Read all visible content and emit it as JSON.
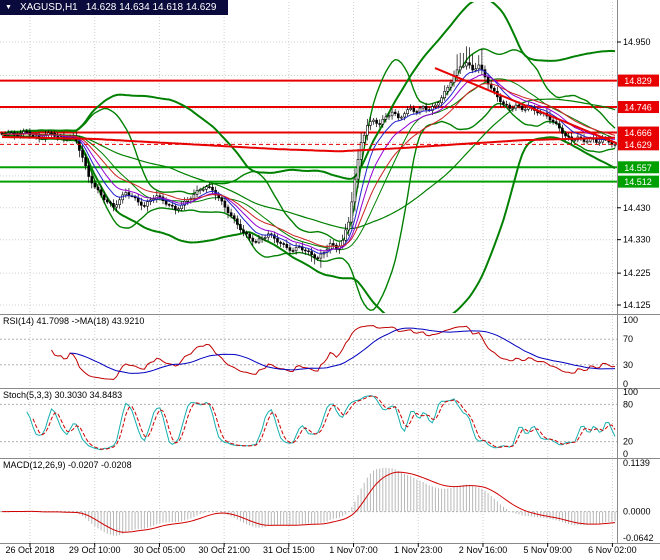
{
  "title_bar": {
    "icon": "▼",
    "symbol": "XAGUSD,H1",
    "ohlc": "14.628 14.634 14.618 14.629"
  },
  "panels": {
    "rsi": {
      "label": "RSI(14) 41.7098 ->MA(18) 43.9210"
    },
    "stoch": {
      "label": "Stoch(5,3,3) 30.3030 34.8483"
    },
    "macd": {
      "label": "MACD(12,26,9) -0.0207 -0.0208"
    }
  },
  "chart_data": {
    "type": "candlestick",
    "symbol": "XAGUSD",
    "timeframe": "H1",
    "ohlc_display": {
      "open": "14.628",
      "high": "14.634",
      "low": "14.618",
      "close": "14.629"
    },
    "time_ticks": [
      "26 Oct 2018",
      "29 Oct 10:00",
      "30 Oct 05:00",
      "30 Oct 21:00",
      "31 Oct 15:00",
      "1 Nov 07:00",
      "1 Nov 23:00",
      "2 Nov 16:00",
      "5 Nov 09:00",
      "6 Nov 02:00"
    ],
    "price_axis": {
      "min": 14.105,
      "max": 15.08,
      "plain_ticks": [
        {
          "label": "14.950",
          "price": 14.95
        },
        {
          "label": "14.430",
          "price": 14.43
        },
        {
          "label": "14.330",
          "price": 14.33
        },
        {
          "label": "14.225",
          "price": 14.225
        },
        {
          "label": "14.125",
          "price": 14.125
        }
      ],
      "grid_ticks": [
        14.95,
        14.845,
        14.74,
        14.635,
        14.53,
        14.43,
        14.33,
        14.225,
        14.125
      ],
      "badges": [
        {
          "label": "14.829",
          "price": 14.829,
          "type": "resistance"
        },
        {
          "label": "14.746",
          "price": 14.746,
          "type": "resistance"
        },
        {
          "label": "14.666",
          "price": 14.666,
          "type": "resistance"
        },
        {
          "label": "14.629",
          "price": 14.629,
          "type": "current"
        },
        {
          "label": "14.557",
          "price": 14.557,
          "type": "support"
        },
        {
          "label": "14.512",
          "price": 14.512,
          "type": "support"
        }
      ]
    },
    "horizontal_lines": {
      "resistance": [
        14.829,
        14.746,
        14.666
      ],
      "support": [
        14.557,
        14.512
      ],
      "current_price": 14.629
    },
    "trendline": {
      "x1": 0.705,
      "price1": 14.868,
      "x2": 1.0,
      "price2": 14.632
    },
    "slow_ma_waypoints": [
      [
        0,
        14.652
      ],
      [
        0.15,
        14.646
      ],
      [
        0.3,
        14.63
      ],
      [
        0.45,
        14.614
      ],
      [
        0.55,
        14.607
      ],
      [
        0.65,
        14.617
      ],
      [
        0.75,
        14.63
      ],
      [
        0.85,
        14.642
      ],
      [
        1,
        14.65
      ]
    ],
    "closes_waypoints": [
      14.66,
      14.665,
      14.658,
      14.663,
      14.668,
      14.655,
      14.648,
      14.658,
      14.664,
      14.652,
      14.645,
      14.655,
      14.64,
      14.588,
      14.528,
      14.495,
      14.47,
      14.448,
      14.432,
      14.455,
      14.478,
      14.466,
      14.448,
      14.435,
      14.455,
      14.468,
      14.452,
      14.438,
      14.424,
      14.438,
      14.455,
      14.472,
      14.488,
      14.496,
      14.485,
      14.462,
      14.432,
      14.405,
      14.378,
      14.352,
      14.335,
      14.322,
      14.335,
      14.348,
      14.334,
      14.318,
      14.305,
      14.295,
      14.308,
      14.295,
      14.283,
      14.272,
      14.29,
      14.318,
      14.3,
      14.328,
      14.385,
      14.52,
      14.635,
      14.688,
      14.705,
      14.692,
      14.715,
      14.73,
      14.712,
      14.725,
      14.742,
      14.73,
      14.748,
      14.735,
      14.752,
      14.775,
      14.808,
      14.845,
      14.872,
      14.885,
      14.862,
      14.878,
      14.84,
      14.805,
      14.778,
      14.755,
      14.742,
      14.752,
      14.738,
      14.748,
      14.735,
      14.728,
      14.718,
      14.7,
      14.68,
      14.655,
      14.642,
      14.652,
      14.638,
      14.648,
      14.635,
      14.645,
      14.636,
      14.629
    ],
    "interp_jitter": 0.004,
    "indicators": {
      "bb_tight": {
        "period": 20,
        "dev": 2.0
      },
      "bb_wide": {
        "period": 55,
        "dev": 2.2
      },
      "emas": [
        {
          "period": 8,
          "color": "#2222cc"
        },
        {
          "period": 13,
          "color": "#9400d3"
        },
        {
          "period": 21,
          "color": "#cc2222"
        }
      ],
      "rsi": {
        "period": 14,
        "ma_period": 18,
        "last": 41.7098,
        "ma_last": 43.921,
        "levels": [
          70,
          30
        ],
        "axis": [
          {
            "label": "100",
            "value": 100
          },
          {
            "label": "70",
            "value": 70
          },
          {
            "label": "30",
            "value": 30
          },
          {
            "label": "0",
            "value": 0
          }
        ]
      },
      "stoch": {
        "k": 5,
        "d": 3,
        "slowing": 3,
        "last_k": 30.303,
        "last_d": 34.8483,
        "levels": [
          80,
          20
        ],
        "axis": [
          {
            "label": "100",
            "value": 100
          },
          {
            "label": "80",
            "value": 80
          },
          {
            "label": "20",
            "value": 20
          },
          {
            "label": "0",
            "value": 0
          }
        ]
      },
      "macd": {
        "fast": 12,
        "slow": 26,
        "signal": 9,
        "last": -0.0207,
        "last_signal": -0.0208,
        "axis": [
          {
            "label": "0.1139",
            "value": 0.1139
          },
          {
            "label": "0.0000",
            "value": 0.0
          },
          {
            "label": "-0.0642",
            "value": -0.0642
          }
        ]
      }
    },
    "colors": {
      "background": "#ffffff",
      "grid": "#cfcfcf",
      "candle_up": "#ffffff",
      "candle_down": "#000000",
      "candle_border": "#000000",
      "bollinger": "#008000",
      "resistance": "#e80000",
      "support": "#00a000",
      "current_price": "#e80000",
      "trendline": "#e80000",
      "slow_ma": "#e80000",
      "rsi_line": "#c00000",
      "rsi_ma": "#0000c0",
      "stoch_k": "#17b0b0",
      "stoch_d": "#d00000",
      "macd_hist": "#b8b8b8",
      "macd_signal": "#d00000",
      "separator": "#8a8a8a",
      "level_dotted": "#b0b0b0",
      "axis_text": "#000000",
      "badge_text": "#ffffff",
      "title_bg": "#0a0a3c",
      "title_text": "#ffffff"
    }
  }
}
